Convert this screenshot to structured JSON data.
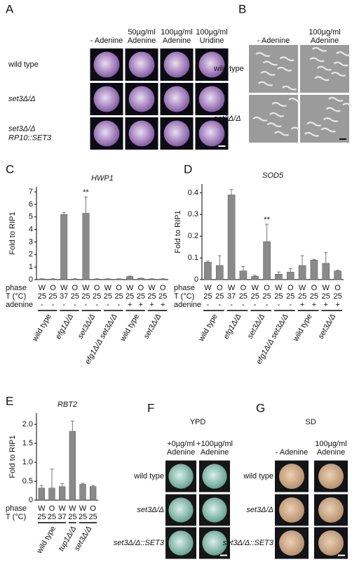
{
  "panels": {
    "A": {
      "label": "A",
      "columns": [
        [
          "- Adenine"
        ],
        [
          "50µg/ml",
          "Adenine"
        ],
        [
          "100µg/ml",
          "Adenine"
        ],
        [
          "100µg/ml",
          "Uridine"
        ]
      ],
      "rows": [
        [
          "wild type"
        ],
        [
          "set3Δ/Δ"
        ],
        [
          "set3Δ/Δ",
          "RP10::SET3"
        ]
      ]
    },
    "B": {
      "label": "B",
      "columns": [
        [
          "- Adenine"
        ],
        [
          "100µg/ml",
          "Adenine"
        ]
      ],
      "rows": [
        [
          "wild type"
        ],
        [
          "set3Δ/Δ"
        ]
      ]
    },
    "F": {
      "label": "F",
      "medium": "YPD",
      "columns": [
        [
          "+0µg/ml",
          "Adenine"
        ],
        [
          "+100µg/ml",
          "Adenine"
        ]
      ],
      "rows": [
        [
          "wild type"
        ],
        [
          "set3Δ/Δ"
        ],
        [
          "set3Δ/Δ::SET3"
        ]
      ]
    },
    "G": {
      "label": "G",
      "medium": "SD",
      "columns": [
        [
          "- Adenine"
        ],
        [
          "100µg/ml",
          "Adenine"
        ]
      ],
      "rows": [
        [
          "wild type"
        ],
        [
          "set3Δ/Δ"
        ],
        [
          "set3Δ/Δ::SET3"
        ]
      ]
    }
  },
  "chart_data": [
    {
      "type": "bar",
      "label": "C",
      "title": "HWP1",
      "ylabel": "Fold to RIP1",
      "color": "#8a8a8a",
      "values": [
        0.05,
        0.05,
        5.2,
        0.05,
        5.3,
        0.05,
        0.05,
        0.05,
        0.25,
        0.1,
        0.05,
        0.05
      ],
      "errors": [
        0.02,
        0.02,
        0.15,
        0.02,
        1.3,
        0.02,
        0.02,
        0.02,
        0.03,
        0.02,
        0.02,
        0.02
      ],
      "significance": [
        null,
        null,
        null,
        null,
        "**",
        null,
        null,
        null,
        null,
        null,
        null,
        null
      ],
      "rows": [
        {
          "label": "phase",
          "values": [
            "W",
            "O",
            "W",
            "O",
            "W",
            "O",
            "W",
            "O",
            "W",
            "O",
            "W",
            "O"
          ]
        },
        {
          "label": "T (°C)",
          "values": [
            25,
            25,
            37,
            25,
            25,
            25,
            25,
            25,
            25,
            25,
            25,
            25
          ]
        },
        {
          "label": "adenine",
          "values": [
            "-",
            "-",
            "-",
            "-",
            "-",
            "-",
            "-",
            "-",
            "+",
            "+",
            "+",
            "+"
          ]
        }
      ],
      "group_labels": [
        "wild type",
        null,
        "efg1Δ/Δ",
        null,
        "set3Δ/Δ",
        null,
        "efg1Δ/Δ set3Δ/Δ",
        null,
        "wild type",
        null,
        "set3Δ/Δ",
        null
      ],
      "ylim": [
        0,
        7.4
      ],
      "yticks": [
        0,
        1,
        2,
        3,
        4,
        5,
        6,
        7
      ]
    },
    {
      "type": "bar",
      "label": "D",
      "title": "SOD5",
      "ylabel": "Fold to RIP1",
      "color": "#8a8a8a",
      "values": [
        0.08,
        0.065,
        0.39,
        0.04,
        0.015,
        0.175,
        0.025,
        0.035,
        0.065,
        0.09,
        0.075,
        0.04
      ],
      "errors": [
        0.005,
        0.045,
        0.025,
        0.02,
        0.005,
        0.08,
        0.01,
        0.015,
        0.045,
        0.003,
        0.05,
        0.003
      ],
      "significance": [
        null,
        null,
        null,
        null,
        null,
        "**",
        null,
        null,
        null,
        null,
        null,
        null
      ],
      "rows": [
        {
          "label": "phase",
          "values": [
            "W",
            "O",
            "W",
            "O",
            "W",
            "O",
            "W",
            "O",
            "W",
            "O",
            "W",
            "O"
          ]
        },
        {
          "label": "T (°C)",
          "values": [
            25,
            25,
            37,
            25,
            25,
            25,
            25,
            25,
            25,
            25,
            25,
            25
          ]
        },
        {
          "label": "adenine",
          "values": [
            "-",
            "-",
            "-",
            "-",
            "-",
            "-",
            "-",
            "-",
            "+",
            "+",
            "+",
            "+"
          ]
        }
      ],
      "group_labels": [
        "wild type",
        null,
        "efg1Δ/Δ",
        null,
        "set3Δ/Δ",
        null,
        "efg1Δ/Δ set3Δ/Δ",
        null,
        "wild type",
        null,
        "set3Δ/Δ",
        null
      ],
      "ylim": [
        0,
        0.44
      ],
      "yticks": [
        0,
        0.1,
        0.2,
        0.3,
        0.4
      ]
    },
    {
      "type": "bar",
      "label": "E",
      "title": "RBT2",
      "ylabel": "Fold to RIP1",
      "color": "#8a8a8a",
      "values": [
        0.32,
        0.32,
        0.36,
        1.82,
        0.42,
        0.36
      ],
      "errors": [
        0.07,
        0.5,
        0.08,
        0.27,
        0.03,
        0.03
      ],
      "significance": [
        null,
        null,
        null,
        null,
        null,
        null
      ],
      "rows": [
        {
          "label": "phase",
          "values": [
            "W",
            "O",
            "W",
            "W",
            "W",
            "O"
          ]
        },
        {
          "label": "T (°C)",
          "values": [
            25,
            25,
            37,
            25,
            25,
            25
          ]
        }
      ],
      "group_labels": [
        "wild type",
        null,
        null,
        "tup1Δ/Δ",
        "set3Δ/Δ",
        null
      ],
      "ylim": [
        0,
        2.3
      ],
      "yticks": [
        0,
        0.5,
        {
          "value": 1,
          "label": "1.0"
        },
        1.5,
        {
          "value": 2,
          "label": "2.0"
        }
      ]
    }
  ]
}
